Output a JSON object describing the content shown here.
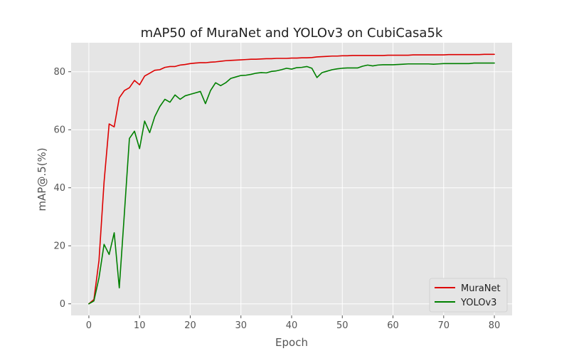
{
  "chart_data": {
    "type": "line",
    "title": "mAP50 of MuraNet and YOLOv3 on CubiCasa5k",
    "xlabel": "Epoch",
    "ylabel": "mAP@.5(%)",
    "xlim": [
      -3.5,
      83.5
    ],
    "ylim": [
      -4,
      90
    ],
    "xticks": [
      0,
      10,
      20,
      30,
      40,
      50,
      60,
      70,
      80
    ],
    "yticks": [
      0,
      20,
      40,
      60,
      80
    ],
    "grid": true,
    "background": "#e5e5e5",
    "legend_position": "lower-right",
    "series": [
      {
        "name": "MuraNet",
        "color": "#dd0000",
        "x": [
          0,
          1,
          2,
          3,
          4,
          5,
          6,
          7,
          8,
          9,
          10,
          11,
          12,
          13,
          14,
          15,
          16,
          17,
          18,
          19,
          20,
          21,
          22,
          23,
          24,
          25,
          26,
          27,
          28,
          29,
          30,
          31,
          32,
          33,
          34,
          35,
          36,
          37,
          38,
          39,
          40,
          41,
          42,
          43,
          44,
          45,
          46,
          47,
          48,
          49,
          50,
          51,
          52,
          53,
          54,
          55,
          56,
          57,
          58,
          59,
          60,
          61,
          62,
          63,
          64,
          65,
          66,
          67,
          68,
          69,
          70,
          71,
          72,
          73,
          74,
          75,
          76,
          77,
          78,
          79,
          80
        ],
        "values": [
          0,
          1.5,
          15,
          42,
          62,
          61,
          71,
          73.5,
          74.5,
          77,
          75.5,
          78.5,
          79.5,
          80.5,
          80.7,
          81.5,
          81.8,
          81.8,
          82.3,
          82.5,
          82.8,
          83,
          83.1,
          83.1,
          83.3,
          83.4,
          83.6,
          83.8,
          83.9,
          84,
          84.1,
          84.2,
          84.3,
          84.3,
          84.4,
          84.5,
          84.5,
          84.6,
          84.6,
          84.6,
          84.7,
          84.7,
          84.8,
          84.8,
          84.9,
          85.1,
          85.2,
          85.3,
          85.4,
          85.4,
          85.5,
          85.5,
          85.6,
          85.6,
          85.6,
          85.6,
          85.6,
          85.6,
          85.6,
          85.7,
          85.7,
          85.7,
          85.7,
          85.7,
          85.8,
          85.8,
          85.8,
          85.8,
          85.8,
          85.8,
          85.8,
          85.9,
          85.9,
          85.9,
          85.9,
          85.9,
          85.9,
          85.9,
          86,
          86,
          86
        ]
      },
      {
        "name": "YOLOv3",
        "color": "#008000",
        "x": [
          0,
          1,
          2,
          3,
          4,
          5,
          6,
          7,
          8,
          9,
          10,
          11,
          12,
          13,
          14,
          15,
          16,
          17,
          18,
          19,
          20,
          21,
          22,
          23,
          24,
          25,
          26,
          27,
          28,
          29,
          30,
          31,
          32,
          33,
          34,
          35,
          36,
          37,
          38,
          39,
          40,
          41,
          42,
          43,
          44,
          45,
          46,
          47,
          48,
          49,
          50,
          51,
          52,
          53,
          54,
          55,
          56,
          57,
          58,
          59,
          60,
          61,
          62,
          63,
          64,
          65,
          66,
          67,
          68,
          69,
          70,
          71,
          72,
          73,
          74,
          75,
          76,
          77,
          78,
          79,
          80
        ],
        "values": [
          0,
          1,
          9,
          20.5,
          17,
          24.5,
          5.5,
          31,
          57,
          59.5,
          53.5,
          63,
          59,
          64.5,
          68,
          70.5,
          69.5,
          72,
          70.5,
          71.7,
          72.2,
          72.7,
          73.2,
          69,
          73.5,
          76.2,
          75.2,
          76.2,
          77.7,
          78.2,
          78.7,
          78.8,
          79.1,
          79.5,
          79.7,
          79.6,
          80.1,
          80.3,
          80.7,
          81.2,
          80.9,
          81.4,
          81.5,
          81.8,
          81.2,
          78,
          79.7,
          80.2,
          80.7,
          81,
          81.2,
          81.3,
          81.3,
          81.3,
          81.9,
          82.3,
          82,
          82.3,
          82.4,
          82.4,
          82.4,
          82.5,
          82.6,
          82.7,
          82.7,
          82.7,
          82.7,
          82.7,
          82.6,
          82.7,
          82.8,
          82.8,
          82.8,
          82.8,
          82.8,
          82.8,
          83,
          83,
          83,
          83,
          83
        ]
      }
    ]
  }
}
